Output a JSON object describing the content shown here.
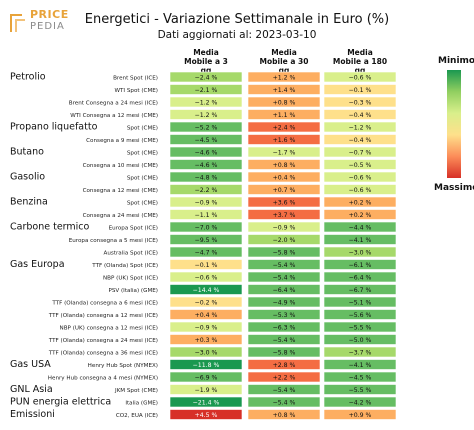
{
  "logo": {
    "line1": "PRICE",
    "line2": "PEDIA"
  },
  "header": {
    "title": "Energetici - Variazione Settimanale in Euro (%)",
    "subtitle": "Dati aggiornati al: 2023-03-10"
  },
  "columns": [
    "Media\nMobile a 3\ngg",
    "Media\nMobile a 30\ngg",
    "Media\nMobile a 180\ngg"
  ],
  "legend": {
    "top": "Minimo",
    "bottom": "Massimo"
  },
  "colors": {
    "deep_green": "#1a9850",
    "green": "#66bd63",
    "light_green": "#a6d96a",
    "pale_green": "#d9ef8b",
    "yellow": "#fee08b",
    "light_orange": "#fdae61",
    "orange": "#f46d43",
    "red": "#d73027"
  },
  "groups": [
    {
      "label": "Petrolio",
      "row": 0
    },
    {
      "label": "Propano liquefatto",
      "row": 4
    },
    {
      "label": "Butano",
      "row": 6
    },
    {
      "label": "Gasolio",
      "row": 8
    },
    {
      "label": "Benzina",
      "row": 10
    },
    {
      "label": "Carbone termico",
      "row": 12
    },
    {
      "label": "Gas Europa",
      "row": 15
    },
    {
      "label": "Gas USA",
      "row": 23
    },
    {
      "label": "GNL Asia",
      "row": 25
    },
    {
      "label": "PUN energia elettrica",
      "row": 26
    },
    {
      "label": "Emissioni",
      "row": 27
    }
  ],
  "chart_data": {
    "type": "table",
    "title": "Energetici - Variazione Settimanale in Euro (%)",
    "columns": [
      "Media Mobile a 3 gg",
      "Media Mobile a 30 gg",
      "Media Mobile a 180 gg"
    ],
    "rows": [
      {
        "label": "Brent Spot (ICE)",
        "values": [
          "−2.4 %",
          "+1.2 %",
          "−0.6 %"
        ],
        "v": [
          -2.4,
          1.2,
          -0.6
        ]
      },
      {
        "label": "WTI Spot (CME)",
        "values": [
          "−2.1 %",
          "+1.4 %",
          "−0.1 %"
        ],
        "v": [
          -2.1,
          1.4,
          -0.1
        ]
      },
      {
        "label": "Brent Consegna a 24 mesi (ICE)",
        "values": [
          "−1.2 %",
          "+0.8 %",
          "−0.3 %"
        ],
        "v": [
          -1.2,
          0.8,
          -0.3
        ]
      },
      {
        "label": "WTI Consegna a 12 mesi (CME)",
        "values": [
          "−1.2 %",
          "+1.1 %",
          "−0.4 %"
        ],
        "v": [
          -1.2,
          1.1,
          -0.4
        ]
      },
      {
        "label": "Spot (CME)",
        "values": [
          "−5.2 %",
          "+2.4 %",
          "−1.2 %"
        ],
        "v": [
          -5.2,
          2.4,
          -1.2
        ]
      },
      {
        "label": "Consegna a 9 mesi (CME)",
        "values": [
          "−4.5 %",
          "+1.6 %",
          "−0.4 %"
        ],
        "v": [
          -4.5,
          1.6,
          -0.4
        ]
      },
      {
        "label": "Spot (CME)",
        "values": [
          "−4.6 %",
          "−1.7 %",
          "−0.7 %"
        ],
        "v": [
          -4.6,
          -1.7,
          -0.7
        ]
      },
      {
        "label": "Consegna a 10 mesi (CME)",
        "values": [
          "−4.6 %",
          "+0.8 %",
          "−0.5 %"
        ],
        "v": [
          -4.6,
          0.8,
          -0.5
        ]
      },
      {
        "label": "Spot (CME)",
        "values": [
          "−4.8 %",
          "+0.4 %",
          "−0.6 %"
        ],
        "v": [
          -4.8,
          0.4,
          -0.6
        ]
      },
      {
        "label": "Consegna a 12 mesi (CME)",
        "values": [
          "−2.2 %",
          "+0.7 %",
          "−0.6 %"
        ],
        "v": [
          -2.2,
          0.7,
          -0.6
        ]
      },
      {
        "label": "Spot (CME)",
        "values": [
          "−0.9 %",
          "+3.6 %",
          "+0.2 %"
        ],
        "v": [
          -0.9,
          3.6,
          0.2
        ]
      },
      {
        "label": "Consegna a 24 mesi (CME)",
        "values": [
          "−1.1 %",
          "+3.7 %",
          "+0.2 %"
        ],
        "v": [
          -1.1,
          3.7,
          0.2
        ]
      },
      {
        "label": "Europa Spot (ICE)",
        "values": [
          "−7.0 %",
          "−0.9 %",
          "−4.4 %"
        ],
        "v": [
          -7.0,
          -0.9,
          -4.4
        ]
      },
      {
        "label": "Europa consegna a 5 mesi (ICE)",
        "values": [
          "−9.5 %",
          "−2.0 %",
          "−4.1 %"
        ],
        "v": [
          -9.5,
          -2.0,
          -4.1
        ]
      },
      {
        "label": "Australia Spot (ICE)",
        "values": [
          "−4.7 %",
          "−5.8 %",
          "−3.0 %"
        ],
        "v": [
          -4.7,
          -5.8,
          -3.0
        ]
      },
      {
        "label": "TTF (Olanda) Spot (ICE)",
        "values": [
          "−0.1 %",
          "−5.4 %",
          "−6.1 %"
        ],
        "v": [
          -0.1,
          -5.4,
          -6.1
        ]
      },
      {
        "label": "NBP (UK) Spot (ICE)",
        "values": [
          "−0.6 %",
          "−5.4 %",
          "−6.4 %"
        ],
        "v": [
          -0.6,
          -5.4,
          -6.4
        ]
      },
      {
        "label": "PSV (Italia) (GME)",
        "values": [
          "−14.4 %",
          "−6.4 %",
          "−6.7 %"
        ],
        "v": [
          -14.4,
          -6.4,
          -6.7
        ]
      },
      {
        "label": "TTF (Olanda) consegna a 6 mesi (ICE)",
        "values": [
          "−0.2 %",
          "−4.9 %",
          "−5.1 %"
        ],
        "v": [
          -0.2,
          -4.9,
          -5.1
        ]
      },
      {
        "label": "TTF (Olanda) consegna a 12 mesi (ICE)",
        "values": [
          "+0.4 %",
          "−5.3 %",
          "−5.6 %"
        ],
        "v": [
          0.4,
          -5.3,
          -5.6
        ]
      },
      {
        "label": "NBP (UK) consegna a 12 mesi (ICE)",
        "values": [
          "−0.9 %",
          "−6.3 %",
          "−5.5 %"
        ],
        "v": [
          -0.9,
          -6.3,
          -5.5
        ]
      },
      {
        "label": "TTF (Olanda) consegna a 24 mesi (ICE)",
        "values": [
          "+0.3 %",
          "−5.4 %",
          "−5.0 %"
        ],
        "v": [
          0.3,
          -5.4,
          -5.0
        ]
      },
      {
        "label": "TTF (Olanda) consegna a 36 mesi (ICE)",
        "values": [
          "−3.0 %",
          "−5.8 %",
          "−3.7 %"
        ],
        "v": [
          -3.0,
          -5.8,
          -3.7
        ]
      },
      {
        "label": "Henry Hub Spot (NYMEX)",
        "values": [
          "−11.8 %",
          "+2.8 %",
          "−4.1 %"
        ],
        "v": [
          -11.8,
          2.8,
          -4.1
        ]
      },
      {
        "label": "Henry Hub consegna a 4 mesi (NYMEX)",
        "values": [
          "−6.9 %",
          "+2.2 %",
          "−4.5 %"
        ],
        "v": [
          -6.9,
          2.2,
          -4.5
        ]
      },
      {
        "label": "JKM Spot (CME)",
        "values": [
          "−1.9 %",
          "−5.4 %",
          "−5.5 %"
        ],
        "v": [
          -1.9,
          -5.4,
          -5.5
        ]
      },
      {
        "label": "Italia (GME)",
        "values": [
          "−21.4 %",
          "−5.4 %",
          "−4.2 %"
        ],
        "v": [
          -21.4,
          -5.4,
          -4.2
        ]
      },
      {
        "label": "CO2, EUA (ICE)",
        "values": [
          "+4.5 %",
          "+0.8 %",
          "+0.9 %"
        ],
        "v": [
          4.5,
          0.8,
          0.9
        ]
      }
    ]
  }
}
